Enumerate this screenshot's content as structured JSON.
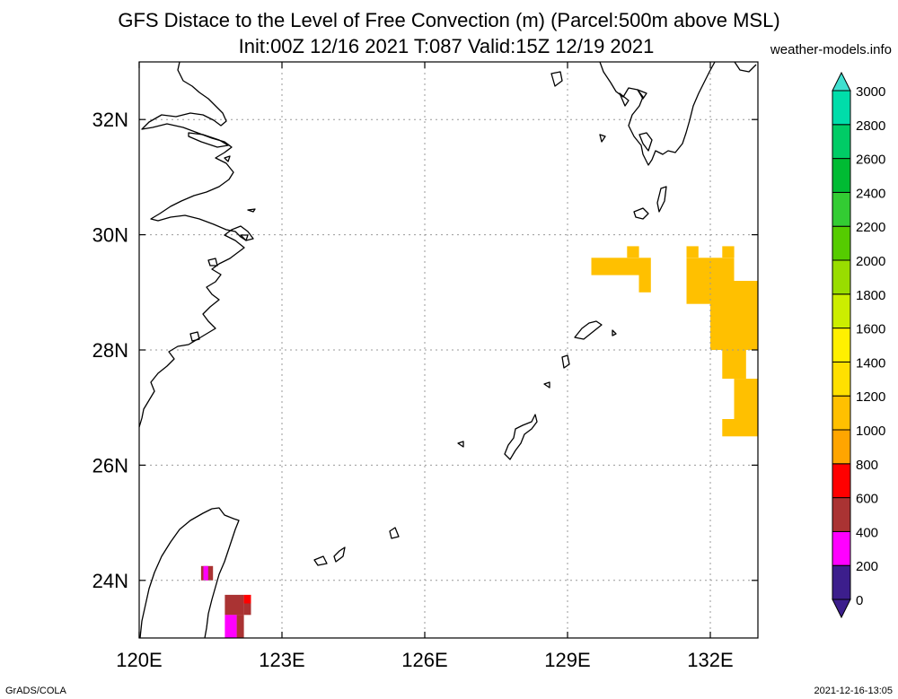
{
  "title": {
    "line1": "GFS Distace to the Level of Free Convection (m) (Parcel:500m above MSL)",
    "line2": "Init:00Z 12/16 2021 T:087 Valid:15Z 12/19 2021"
  },
  "site": "weather-models.info",
  "footer": {
    "left": "GrADS/COLA",
    "right": "2021-12-16-13:05"
  },
  "map": {
    "lon_range": [
      120,
      133
    ],
    "lat_range": [
      23,
      33
    ],
    "lon_ticks": [
      {
        "value": 120,
        "label": "120E"
      },
      {
        "value": 123,
        "label": "123E"
      },
      {
        "value": 126,
        "label": "126E"
      },
      {
        "value": 129,
        "label": "129E"
      },
      {
        "value": 132,
        "label": "132E"
      }
    ],
    "lat_ticks": [
      {
        "value": 24,
        "label": "24N"
      },
      {
        "value": 26,
        "label": "26N"
      },
      {
        "value": 28,
        "label": "28N"
      },
      {
        "value": 30,
        "label": "30N"
      },
      {
        "value": 32,
        "label": "32N"
      }
    ],
    "grid": true,
    "field_cells": [
      {
        "lon": [
          129.5,
          130.5
        ],
        "lat": [
          29.3,
          29.6
        ],
        "value": 1000
      },
      {
        "lon": [
          130.25,
          130.5
        ],
        "lat": [
          29.6,
          29.8
        ],
        "value": 1000
      },
      {
        "lon": [
          130.5,
          130.75
        ],
        "lat": [
          29.0,
          29.6
        ],
        "value": 1000
      },
      {
        "lon": [
          131.5,
          131.75
        ],
        "lat": [
          29.6,
          29.8
        ],
        "value": 1000
      },
      {
        "lon": [
          132.25,
          132.5
        ],
        "lat": [
          29.6,
          29.8
        ],
        "value": 1000
      },
      {
        "lon": [
          131.5,
          132.5
        ],
        "lat": [
          28.8,
          29.6
        ],
        "value": 1050
      },
      {
        "lon": [
          132.0,
          133.0
        ],
        "lat": [
          28.0,
          29.2
        ],
        "value": 1050
      },
      {
        "lon": [
          132.25,
          132.75
        ],
        "lat": [
          27.5,
          28.0
        ],
        "value": 1000
      },
      {
        "lon": [
          132.5,
          133.0
        ],
        "lat": [
          26.8,
          27.5
        ],
        "value": 1000
      },
      {
        "lon": [
          132.25,
          133.0
        ],
        "lat": [
          26.5,
          26.8
        ],
        "value": 1000
      },
      {
        "lon": [
          121.3,
          121.55
        ],
        "lat": [
          24.0,
          24.25
        ],
        "value": 500
      },
      {
        "lon": [
          121.35,
          121.45
        ],
        "lat": [
          24.0,
          24.25
        ],
        "value": 350
      },
      {
        "lon": [
          121.8,
          122.2
        ],
        "lat": [
          23.4,
          23.75
        ],
        "value": 500
      },
      {
        "lon": [
          122.2,
          122.35
        ],
        "lat": [
          23.4,
          23.6
        ],
        "value": 500
      },
      {
        "lon": [
          122.2,
          122.35
        ],
        "lat": [
          23.6,
          23.75
        ],
        "value": 700
      },
      {
        "lon": [
          121.8,
          122.05
        ],
        "lat": [
          23.0,
          23.4
        ],
        "value": 300
      },
      {
        "lon": [
          122.05,
          122.2
        ],
        "lat": [
          23.0,
          23.4
        ],
        "value": 450
      }
    ]
  },
  "colorbar": {
    "labels": [
      "0",
      "200",
      "400",
      "600",
      "800",
      "1000",
      "1200",
      "1400",
      "1600",
      "1800",
      "2000",
      "2200",
      "2400",
      "2600",
      "2800",
      "3000"
    ],
    "colors": [
      "#3c1e8c",
      "#ff00ff",
      "#aa3333",
      "#ff0000",
      "#ffa500",
      "#ffc000",
      "#ffe000",
      "#fff000",
      "#ccee00",
      "#99dd00",
      "#55cc00",
      "#33cc33",
      "#00bb33",
      "#00cc66",
      "#00ddaa",
      "#00eedd"
    ],
    "min_color": "#3c1e8c",
    "max_color": "#40e0d0"
  }
}
